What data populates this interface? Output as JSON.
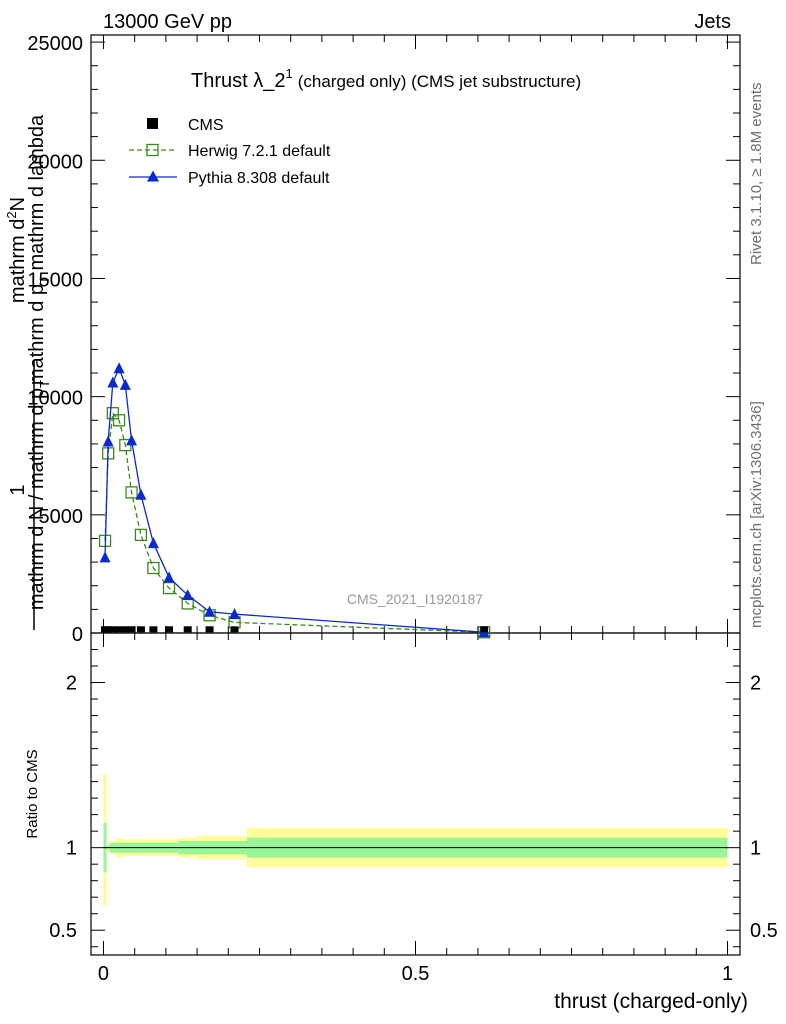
{
  "header": {
    "left": "13000 GeV pp",
    "right": "Jets"
  },
  "side_labels": {
    "rivet": "Rivet 3.1.10, ≥ 1.8M events",
    "mcplots": "mcplots.cern.ch [arXiv:1306.3436]"
  },
  "main_ylabel": {
    "numerator_line1": "mathrm d",
    "numerator_sup": "2",
    "numerator_N": "N",
    "numerator_line2": "mathrm d p",
    "numerator_sub2": "T",
    "numerator_line2b": " mathrm d lambda",
    "one": "1",
    "den_line": "mathrm d N / mathrm d p",
    "den_sub": "T"
  },
  "colors": {
    "herwig": "#3a8a1a",
    "pythia": "#0a2ad0",
    "cms": "#000000",
    "band_inner": "#9af59a",
    "band_outer": "#fdfd9a"
  },
  "chart_data": [
    {
      "type": "line",
      "title_main": "Thrust λ_2",
      "title_sup": "1",
      "title_rest": "(charged only) (CMS jet substructure)",
      "watermark": "CMS_2021_I1920187",
      "xlim": [
        -0.02,
        1.02
      ],
      "ylim": [
        0,
        25300
      ],
      "yticks": [
        0,
        5000,
        10000,
        15000,
        20000,
        25000
      ],
      "ytick_labels": [
        "0",
        "5000",
        "10000",
        "15000",
        "20000",
        "25000"
      ],
      "legend": [
        "CMS",
        "Herwig 7.2.1 default",
        "Pythia 8.308 default"
      ],
      "series": [
        {
          "name": "CMS",
          "x": [
            0.0025,
            0.0075,
            0.015,
            0.025,
            0.035,
            0.045,
            0.06,
            0.08,
            0.105,
            0.135,
            0.17,
            0.21,
            0.61
          ],
          "values": [
            30,
            30,
            30,
            30,
            30,
            30,
            30,
            30,
            30,
            30,
            30,
            30,
            30
          ]
        },
        {
          "name": "Herwig 7.2.1 default",
          "x": [
            0.0025,
            0.0075,
            0.015,
            0.025,
            0.035,
            0.045,
            0.06,
            0.08,
            0.105,
            0.135,
            0.17,
            0.21,
            0.61
          ],
          "values": [
            3900,
            7600,
            9300,
            9000,
            7950,
            5950,
            4150,
            2750,
            1900,
            1250,
            750,
            450,
            30
          ]
        },
        {
          "name": "Pythia 8.308 default",
          "x": [
            0.0025,
            0.0075,
            0.015,
            0.025,
            0.035,
            0.045,
            0.06,
            0.08,
            0.105,
            0.135,
            0.17,
            0.21,
            0.61
          ],
          "values": [
            3200,
            8100,
            10600,
            11200,
            10500,
            8150,
            5850,
            3800,
            2350,
            1600,
            900,
            800,
            30
          ]
        }
      ]
    },
    {
      "type": "area",
      "ylabel": "Ratio to CMS",
      "xlabel": "thrust (charged-only)",
      "xlim": [
        -0.02,
        1.02
      ],
      "ylim": [
        0.35,
        2.3
      ],
      "xticks": [
        0,
        0.5,
        1
      ],
      "xtick_labels": [
        "0",
        "0.5",
        "1"
      ],
      "yticks": [
        0.5,
        1,
        2
      ],
      "ytick_labels": [
        "0.5",
        "1",
        "2"
      ],
      "bins": [
        0,
        0.005,
        0.01,
        0.02,
        0.03,
        0.04,
        0.05,
        0.07,
        0.09,
        0.12,
        0.15,
        0.19,
        0.23,
        1.0
      ],
      "band_inner_lo": [
        0.85,
        0.99,
        0.97,
        0.97,
        0.97,
        0.97,
        0.97,
        0.97,
        0.97,
        0.96,
        0.96,
        0.96,
        0.94
      ],
      "band_inner_hi": [
        1.15,
        1.01,
        1.03,
        1.03,
        1.03,
        1.03,
        1.03,
        1.03,
        1.03,
        1.04,
        1.04,
        1.04,
        1.06
      ],
      "band_outer_lo": [
        0.65,
        0.98,
        0.96,
        0.94,
        0.95,
        0.95,
        0.95,
        0.95,
        0.95,
        0.94,
        0.93,
        0.93,
        0.88
      ],
      "band_outer_hi": [
        1.45,
        1.02,
        1.04,
        1.06,
        1.05,
        1.05,
        1.05,
        1.05,
        1.05,
        1.06,
        1.07,
        1.07,
        1.12
      ],
      "ratio_line": 1
    }
  ]
}
